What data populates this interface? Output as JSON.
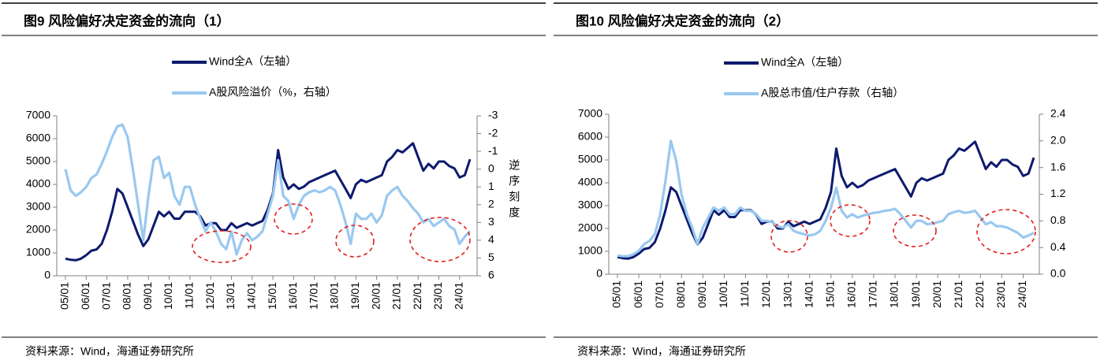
{
  "chart_data": [
    {
      "type": "line",
      "title": "图9  风险偏好决定资金的流向（1）",
      "source": "资料来源：Wind，海通证券研究所",
      "annotation": "逆序刻度",
      "categories": [
        "05/01",
        null,
        null,
        null,
        "06/01",
        null,
        null,
        null,
        "07/01",
        null,
        null,
        null,
        "08/01",
        null,
        null,
        null,
        "09/01",
        null,
        null,
        null,
        "10/01",
        null,
        null,
        null,
        "11/01",
        null,
        null,
        null,
        "12/01",
        null,
        null,
        null,
        "13/01",
        null,
        null,
        null,
        "14/01",
        null,
        null,
        null,
        "15/01",
        null,
        null,
        null,
        "16/01",
        null,
        null,
        null,
        "17/01",
        null,
        null,
        null,
        "18/01",
        null,
        null,
        null,
        "19/01",
        null,
        null,
        null,
        "20/01",
        null,
        null,
        null,
        "21/01",
        null,
        null,
        null,
        "22/01",
        null,
        null,
        null,
        "23/01",
        null,
        null,
        null,
        "24/01",
        null,
        null
      ],
      "ylim": [
        0,
        7000
      ],
      "yticks": [
        0,
        1000,
        2000,
        3000,
        4000,
        5000,
        6000,
        7000
      ],
      "y2lim": [
        6,
        -3
      ],
      "y2ticks": [
        -3,
        -2,
        -1,
        0,
        1,
        2,
        3,
        4,
        5,
        6
      ],
      "series": [
        {
          "name": "Wind全A（左轴）",
          "color": "#0d1a6e",
          "values": [
            750,
            700,
            680,
            750,
            900,
            1100,
            1150,
            1400,
            2000,
            2800,
            3800,
            3600,
            3000,
            2400,
            1800,
            1300,
            1600,
            2200,
            2800,
            2600,
            2800,
            2500,
            2500,
            2800,
            2800,
            2800,
            2600,
            2200,
            2300,
            2300,
            2000,
            2000,
            2300,
            2100,
            2200,
            2300,
            2200,
            2300,
            2400,
            2900,
            3600,
            5500,
            4300,
            3800,
            4000,
            3800,
            3900,
            4100,
            4200,
            4300,
            4400,
            4500,
            4600,
            4200,
            3800,
            3400,
            4000,
            4200,
            4100,
            4200,
            4300,
            4400,
            5000,
            5200,
            5500,
            5400,
            5600,
            5800,
            5200,
            4600,
            4900,
            4700,
            5000,
            5000,
            4800,
            4700,
            4300,
            4400,
            5100
          ]
        },
        {
          "name": "A股风险溢价（%，右轴）",
          "color": "#99c8f0",
          "axis": "y2",
          "values": [
            0,
            1.2,
            1.5,
            1.3,
            1.0,
            0.5,
            0.3,
            -0.3,
            -1.0,
            -1.8,
            -2.4,
            -2.5,
            -1.8,
            0,
            2.0,
            4.0,
            1.5,
            -0.5,
            -0.7,
            0.5,
            0.2,
            1.5,
            2.0,
            1.0,
            1.0,
            2.0,
            2.8,
            3.5,
            3.0,
            3.5,
            4.2,
            4.5,
            3.5,
            4.8,
            4.0,
            3.6,
            4.0,
            3.8,
            3.5,
            2.5,
            1.5,
            -0.5,
            1.5,
            1.8,
            2.8,
            2.0,
            1.5,
            1.3,
            1.2,
            1.3,
            1.2,
            1.0,
            1.2,
            2.0,
            3.0,
            4.2,
            2.5,
            2.8,
            2.8,
            2.5,
            3.0,
            2.6,
            1.5,
            1.2,
            1.0,
            1.5,
            1.8,
            2.2,
            2.5,
            3.0,
            2.8,
            3.2,
            3.0,
            2.8,
            3.2,
            3.4,
            4.2,
            3.8,
            3.5
          ]
        }
      ]
    },
    {
      "type": "line",
      "title": "图10 风险偏好决定资金的流向（2）",
      "source": "资料来源：Wind，海通证券研究所",
      "categories": [
        "05/01",
        null,
        null,
        null,
        "06/01",
        null,
        null,
        null,
        "07/01",
        null,
        null,
        null,
        "08/01",
        null,
        null,
        null,
        "09/01",
        null,
        null,
        null,
        "10/01",
        null,
        null,
        null,
        "11/01",
        null,
        null,
        null,
        "12/01",
        null,
        null,
        null,
        "13/01",
        null,
        null,
        null,
        "14/01",
        null,
        null,
        null,
        "15/01",
        null,
        null,
        null,
        "16/01",
        null,
        null,
        null,
        "17/01",
        null,
        null,
        null,
        "18/01",
        null,
        null,
        null,
        "19/01",
        null,
        null,
        null,
        "20/01",
        null,
        null,
        null,
        "21/01",
        null,
        null,
        null,
        "22/01",
        null,
        null,
        null,
        "23/01",
        null,
        null,
        null,
        "24/01",
        null,
        null
      ],
      "ylim": [
        0,
        7000
      ],
      "yticks": [
        0,
        1000,
        2000,
        3000,
        4000,
        5000,
        6000,
        7000
      ],
      "y2lim": [
        0,
        2.4
      ],
      "y2ticks": [
        {
          "value": 0,
          "label": "0.0"
        },
        0.4,
        0.8,
        1.2,
        1.6,
        {
          "value": 2,
          "label": "2.0"
        },
        2.4
      ],
      "series": [
        {
          "name": "Wind全A（左轴）",
          "color": "#0d1a6e",
          "values": [
            750,
            700,
            680,
            750,
            900,
            1100,
            1150,
            1400,
            2000,
            2800,
            3800,
            3600,
            3000,
            2400,
            1800,
            1300,
            1600,
            2200,
            2800,
            2600,
            2800,
            2500,
            2500,
            2800,
            2800,
            2800,
            2600,
            2200,
            2300,
            2300,
            2000,
            2000,
            2300,
            2100,
            2200,
            2300,
            2200,
            2300,
            2400,
            2900,
            3600,
            5500,
            4300,
            3800,
            4000,
            3800,
            3900,
            4100,
            4200,
            4300,
            4400,
            4500,
            4600,
            4200,
            3800,
            3400,
            4000,
            4200,
            4100,
            4200,
            4300,
            4400,
            5000,
            5200,
            5500,
            5400,
            5600,
            5800,
            5200,
            4600,
            4900,
            4700,
            5000,
            5000,
            4800,
            4700,
            4300,
            4400,
            5100
          ]
        },
        {
          "name": "A股总市值/住户存款（右轴）",
          "color": "#99c8f0",
          "axis": "y2",
          "values": [
            0.28,
            0.27,
            0.27,
            0.3,
            0.35,
            0.45,
            0.5,
            0.6,
            0.9,
            1.4,
            2.0,
            1.7,
            1.2,
            0.9,
            0.7,
            0.45,
            0.7,
            0.85,
            1.0,
            0.95,
            1.0,
            0.9,
            0.9,
            1.0,
            0.95,
            0.95,
            0.9,
            0.8,
            0.8,
            0.78,
            0.72,
            0.7,
            0.75,
            0.65,
            0.62,
            0.6,
            0.58,
            0.6,
            0.65,
            0.8,
            1.0,
            1.3,
            0.95,
            0.85,
            0.9,
            0.85,
            0.88,
            0.9,
            0.92,
            0.93,
            0.95,
            0.96,
            0.98,
            0.9,
            0.8,
            0.7,
            0.8,
            0.8,
            0.75,
            0.76,
            0.78,
            0.8,
            0.9,
            0.93,
            0.95,
            0.92,
            0.93,
            0.95,
            0.85,
            0.75,
            0.78,
            0.72,
            0.72,
            0.7,
            0.66,
            0.62,
            0.55,
            0.58,
            0.62
          ]
        }
      ]
    }
  ]
}
